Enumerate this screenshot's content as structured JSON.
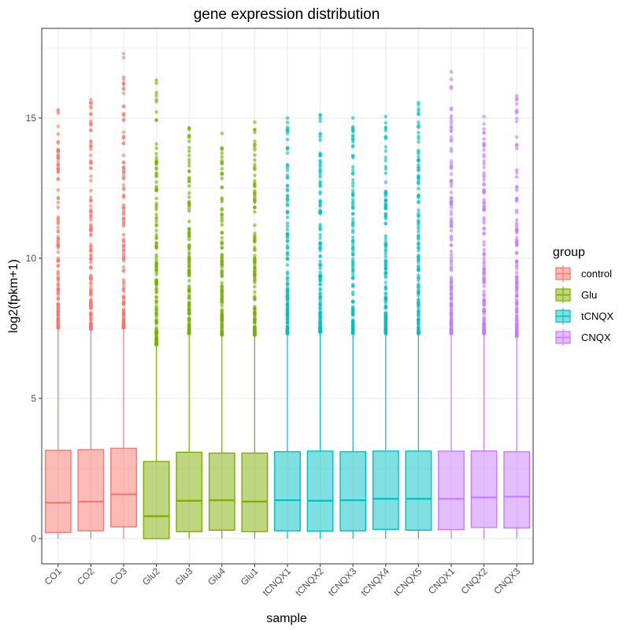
{
  "chart_data": {
    "type": "boxplot",
    "title": "gene expression distribution",
    "xlabel": "sample",
    "ylabel": "log2(fpkm+1)",
    "ylim": [
      -0.9,
      18.2
    ],
    "yticks": [
      0,
      5,
      10,
      15
    ],
    "grid": true,
    "legend": {
      "title": "group",
      "position": "right",
      "entries": [
        {
          "label": "control",
          "color": "#F8766D"
        },
        {
          "label": "Glu",
          "color": "#7CAE00"
        },
        {
          "label": "tCNQX",
          "color": "#00BFC4"
        },
        {
          "label": "CNQX",
          "color": "#C77CFF"
        }
      ]
    },
    "categories": [
      "CO1",
      "CO2",
      "CO3",
      "Glu2",
      "Glu3",
      "Glu4",
      "Glu1",
      "tCNQX1",
      "tCNQX2",
      "tCNQX3",
      "tCNQX4",
      "tCNQX5",
      "CNQX1",
      "CNQX2",
      "CNQX3"
    ],
    "boxes": [
      {
        "sample": "CO1",
        "group": "control",
        "whisker_low": 0.0,
        "q1": 0.22,
        "median": 1.28,
        "q3": 3.15,
        "whisker_high": 7.5,
        "outlier_max": 15.3
      },
      {
        "sample": "CO2",
        "group": "control",
        "whisker_low": 0.0,
        "q1": 0.28,
        "median": 1.32,
        "q3": 3.17,
        "whisker_high": 7.45,
        "outlier_max": 15.65
      },
      {
        "sample": "CO3",
        "group": "control",
        "whisker_low": 0.0,
        "q1": 0.42,
        "median": 1.58,
        "q3": 3.22,
        "whisker_high": 7.5,
        "outlier_max": 17.3
      },
      {
        "sample": "Glu2",
        "group": "Glu",
        "whisker_low": 0.0,
        "q1": 0.0,
        "median": 0.8,
        "q3": 2.75,
        "whisker_high": 6.9,
        "outlier_max": 16.35
      },
      {
        "sample": "Glu3",
        "group": "Glu",
        "whisker_low": 0.0,
        "q1": 0.25,
        "median": 1.35,
        "q3": 3.08,
        "whisker_high": 7.3,
        "outlier_max": 14.65
      },
      {
        "sample": "Glu4",
        "group": "Glu",
        "whisker_low": 0.0,
        "q1": 0.3,
        "median": 1.37,
        "q3": 3.05,
        "whisker_high": 7.25,
        "outlier_max": 14.45
      },
      {
        "sample": "Glu1",
        "group": "Glu",
        "whisker_low": 0.0,
        "q1": 0.25,
        "median": 1.32,
        "q3": 3.05,
        "whisker_high": 7.25,
        "outlier_max": 14.85
      },
      {
        "sample": "tCNQX1",
        "group": "tCNQX",
        "whisker_low": 0.0,
        "q1": 0.28,
        "median": 1.37,
        "q3": 3.1,
        "whisker_high": 7.3,
        "outlier_max": 15.0
      },
      {
        "sample": "tCNQX2",
        "group": "tCNQX",
        "whisker_low": 0.0,
        "q1": 0.27,
        "median": 1.35,
        "q3": 3.12,
        "whisker_high": 7.35,
        "outlier_max": 15.1
      },
      {
        "sample": "tCNQX3",
        "group": "tCNQX",
        "whisker_low": 0.0,
        "q1": 0.28,
        "median": 1.37,
        "q3": 3.1,
        "whisker_high": 7.3,
        "outlier_max": 15.0
      },
      {
        "sample": "tCNQX4",
        "group": "tCNQX",
        "whisker_low": 0.0,
        "q1": 0.33,
        "median": 1.42,
        "q3": 3.12,
        "whisker_high": 7.3,
        "outlier_max": 15.05
      },
      {
        "sample": "tCNQX5",
        "group": "tCNQX",
        "whisker_low": 0.0,
        "q1": 0.3,
        "median": 1.42,
        "q3": 3.12,
        "whisker_high": 7.3,
        "outlier_max": 15.55
      },
      {
        "sample": "CNQX1",
        "group": "CNQX",
        "whisker_low": 0.0,
        "q1": 0.32,
        "median": 1.42,
        "q3": 3.12,
        "whisker_high": 7.3,
        "outlier_max": 16.65
      },
      {
        "sample": "CNQX2",
        "group": "CNQX",
        "whisker_low": 0.0,
        "q1": 0.4,
        "median": 1.47,
        "q3": 3.13,
        "whisker_high": 7.3,
        "outlier_max": 15.05
      },
      {
        "sample": "CNQX3",
        "group": "CNQX",
        "whisker_low": 0.0,
        "q1": 0.38,
        "median": 1.5,
        "q3": 3.1,
        "whisker_high": 7.2,
        "outlier_max": 15.8
      }
    ]
  }
}
